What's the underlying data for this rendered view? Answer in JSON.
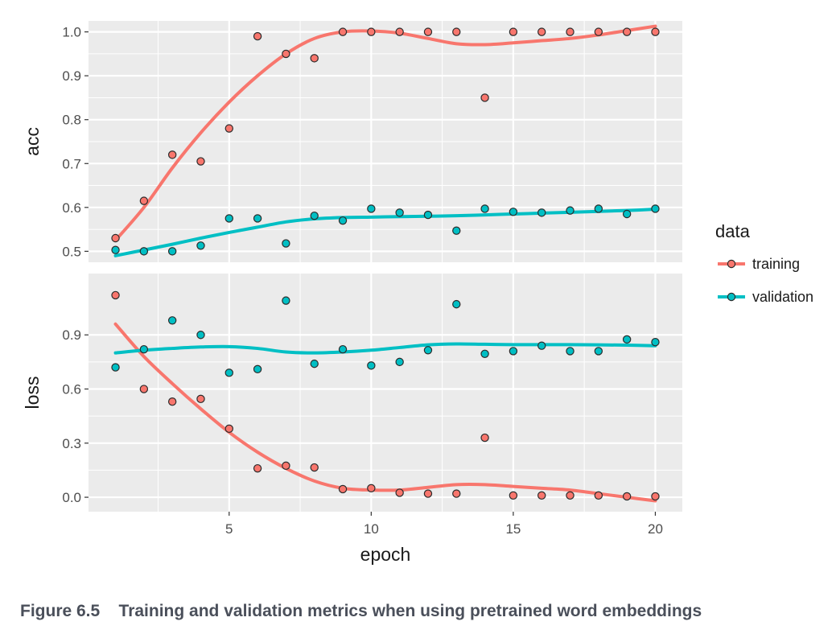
{
  "caption": "Figure 6.5    Training and validation metrics when using pretrained word embeddings",
  "colors": {
    "training": "#f8766d",
    "validation": "#00bfc4",
    "panel_bg": "#ebebeb",
    "grid": "#ffffff"
  },
  "chart_data": {
    "type": "scatter",
    "xlabel": "epoch",
    "x_ticks": [
      5,
      10,
      15,
      20
    ],
    "xlim": [
      0.05,
      20.95
    ],
    "legend": {
      "title": "data",
      "position": "right",
      "entries": [
        "training",
        "validation"
      ]
    },
    "grid": true,
    "panels": [
      {
        "name": "acc",
        "ylabel": "acc",
        "ylim": [
          0.475,
          1.025
        ],
        "y_ticks": [
          0.5,
          0.6,
          0.7,
          0.8,
          0.9,
          1.0
        ],
        "y_tick_labels": [
          "0.5",
          "0.6",
          "0.7",
          "0.8",
          "0.9",
          "1.0"
        ],
        "series": [
          {
            "name": "training",
            "x": [
              1,
              2,
              3,
              4,
              5,
              6,
              7,
              8,
              9,
              10,
              11,
              12,
              13,
              14,
              15,
              16,
              17,
              18,
              19,
              20
            ],
            "y": [
              0.53,
              0.615,
              0.72,
              0.705,
              0.78,
              0.99,
              0.95,
              0.94,
              1.0,
              1.0,
              1.0,
              1.0,
              1.0,
              0.85,
              1.0,
              1.0,
              1.0,
              1.0,
              1.0,
              1.0
            ],
            "smooth": [
              [
                1,
                0.525
              ],
              [
                2,
                0.6
              ],
              [
                3,
                0.69
              ],
              [
                4,
                0.77
              ],
              [
                5,
                0.84
              ],
              [
                6,
                0.9
              ],
              [
                7,
                0.95
              ],
              [
                8,
                0.985
              ],
              [
                9,
                1.0
              ],
              [
                10,
                1.002
              ],
              [
                11,
                0.997
              ],
              [
                12,
                0.985
              ],
              [
                13,
                0.973
              ],
              [
                14,
                0.971
              ],
              [
                15,
                0.975
              ],
              [
                16,
                0.98
              ],
              [
                17,
                0.985
              ],
              [
                18,
                0.993
              ],
              [
                19,
                1.003
              ],
              [
                20,
                1.013
              ]
            ]
          },
          {
            "name": "validation",
            "x": [
              1,
              2,
              3,
              4,
              5,
              6,
              7,
              8,
              9,
              10,
              11,
              12,
              13,
              14,
              15,
              16,
              17,
              18,
              19,
              20
            ],
            "y": [
              0.503,
              0.5,
              0.5,
              0.513,
              0.575,
              0.575,
              0.518,
              0.581,
              0.57,
              0.597,
              0.588,
              0.583,
              0.547,
              0.597,
              0.59,
              0.588,
              0.593,
              0.597,
              0.585,
              0.597
            ],
            "smooth": [
              [
                1,
                0.49
              ],
              [
                2,
                0.503
              ],
              [
                3,
                0.516
              ],
              [
                4,
                0.53
              ],
              [
                5,
                0.543
              ],
              [
                6,
                0.555
              ],
              [
                7,
                0.567
              ],
              [
                8,
                0.574
              ],
              [
                9,
                0.577
              ],
              [
                10,
                0.578
              ],
              [
                11,
                0.579
              ],
              [
                12,
                0.58
              ],
              [
                13,
                0.581
              ],
              [
                14,
                0.583
              ],
              [
                15,
                0.585
              ],
              [
                16,
                0.587
              ],
              [
                17,
                0.589
              ],
              [
                18,
                0.591
              ],
              [
                19,
                0.593
              ],
              [
                20,
                0.596
              ]
            ]
          }
        ]
      },
      {
        "name": "loss",
        "ylabel": "loss",
        "ylim": [
          -0.08,
          1.24
        ],
        "y_ticks": [
          0.0,
          0.3,
          0.6,
          0.9
        ],
        "y_tick_labels": [
          "0.0",
          "0.3",
          "0.6",
          "0.9"
        ],
        "series": [
          {
            "name": "training",
            "x": [
              1,
              2,
              3,
              4,
              5,
              6,
              7,
              8,
              9,
              10,
              11,
              12,
              13,
              14,
              15,
              16,
              17,
              18,
              19,
              20
            ],
            "y": [
              1.12,
              0.6,
              0.53,
              0.545,
              0.38,
              0.16,
              0.175,
              0.165,
              0.045,
              0.05,
              0.025,
              0.02,
              0.02,
              0.33,
              0.01,
              0.01,
              0.01,
              0.01,
              0.005,
              0.005
            ],
            "smooth": [
              [
                1,
                0.96
              ],
              [
                2,
                0.78
              ],
              [
                3,
                0.63
              ],
              [
                4,
                0.49
              ],
              [
                5,
                0.36
              ],
              [
                6,
                0.25
              ],
              [
                7,
                0.16
              ],
              [
                8,
                0.09
              ],
              [
                9,
                0.05
              ],
              [
                10,
                0.04
              ],
              [
                11,
                0.04
              ],
              [
                12,
                0.055
              ],
              [
                13,
                0.07
              ],
              [
                14,
                0.07
              ],
              [
                15,
                0.06
              ],
              [
                16,
                0.05
              ],
              [
                17,
                0.04
              ],
              [
                18,
                0.02
              ],
              [
                19,
                0.0
              ],
              [
                20,
                -0.02
              ]
            ]
          },
          {
            "name": "validation",
            "x": [
              1,
              2,
              3,
              4,
              5,
              6,
              7,
              8,
              9,
              10,
              11,
              12,
              13,
              14,
              15,
              16,
              17,
              18,
              19,
              20
            ],
            "y": [
              0.72,
              0.82,
              0.98,
              0.9,
              0.69,
              0.71,
              1.09,
              0.74,
              0.82,
              0.73,
              0.75,
              0.815,
              1.07,
              0.795,
              0.81,
              0.84,
              0.81,
              0.81,
              0.875,
              0.86
            ],
            "smooth": [
              [
                1,
                0.8
              ],
              [
                2,
                0.815
              ],
              [
                3,
                0.825
              ],
              [
                4,
                0.833
              ],
              [
                5,
                0.835
              ],
              [
                6,
                0.825
              ],
              [
                7,
                0.805
              ],
              [
                8,
                0.8
              ],
              [
                9,
                0.805
              ],
              [
                10,
                0.815
              ],
              [
                11,
                0.83
              ],
              [
                12,
                0.845
              ],
              [
                13,
                0.85
              ],
              [
                14,
                0.848
              ],
              [
                15,
                0.846
              ],
              [
                16,
                0.846
              ],
              [
                17,
                0.846
              ],
              [
                18,
                0.845
              ],
              [
                19,
                0.843
              ],
              [
                20,
                0.84
              ]
            ]
          }
        ]
      }
    ]
  }
}
